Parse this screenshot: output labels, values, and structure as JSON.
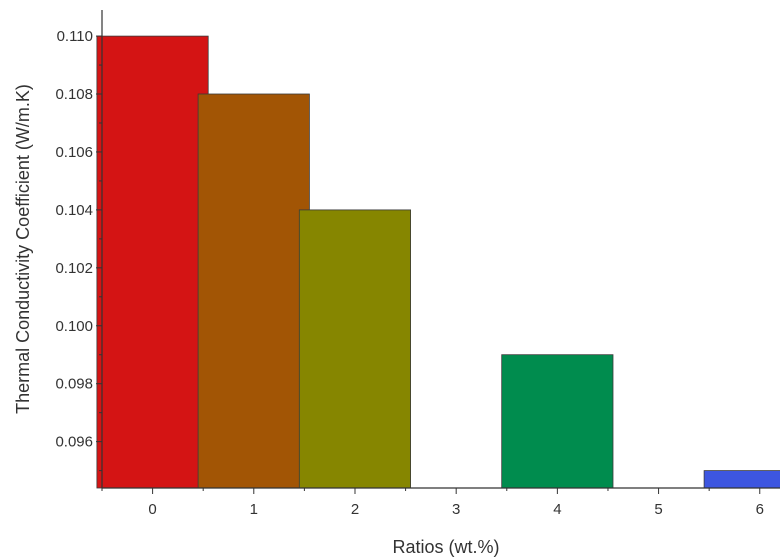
{
  "chart_data": {
    "type": "bar",
    "title": "",
    "xlabel": "Ratios (wt.%)",
    "ylabel": "Thermal Conductivity Coefficient (W/m.K)",
    "x": [
      0,
      1,
      2,
      4,
      6
    ],
    "values": [
      0.11,
      0.108,
      0.104,
      0.099,
      0.095
    ],
    "colors": [
      "#d41414",
      "#a25505",
      "#868600",
      "#008c4e",
      "#3d56e0"
    ],
    "x_ticks": [
      0,
      1,
      2,
      3,
      4,
      5,
      6
    ],
    "y_ticks": [
      "0.096",
      "0.098",
      "0.100",
      "0.102",
      "0.104",
      "0.106",
      "0.108",
      "0.110"
    ],
    "xlim": [
      -0.5,
      6.2
    ],
    "ylim": [
      0.0944,
      0.1109
    ],
    "bar_width": 1.1,
    "grid": false,
    "legend": "none"
  }
}
